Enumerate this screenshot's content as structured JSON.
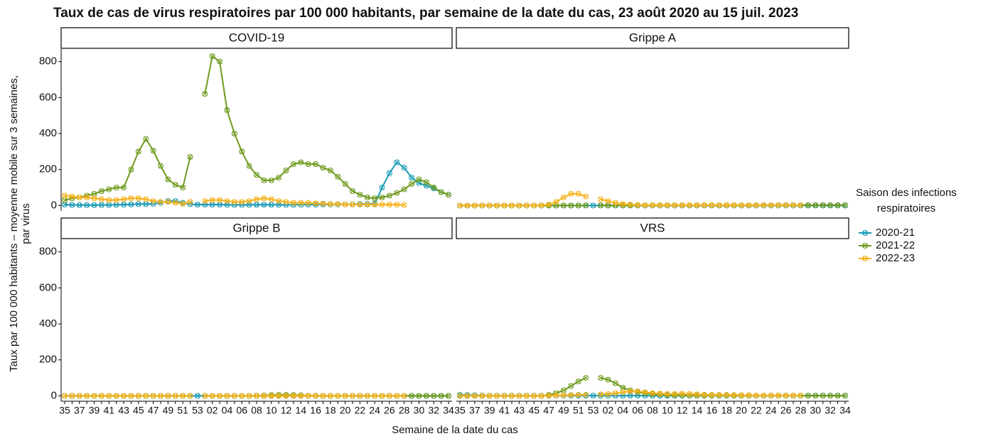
{
  "chart_data": {
    "type": "line",
    "title": "Taux de cas de virus respiratoires par 100 000 habitants, par semaine de la date du cas, 23 août 2020 au 15 juil. 2023",
    "xlabel": "Semaine de la date du cas",
    "ylabel": [
      "Taux par 100 000 habitants – moyenne mobile sur 3 semaines,",
      "par virus"
    ],
    "legend_title": [
      "Saison des infections",
      "respiratoires"
    ],
    "categories": [
      "35",
      null,
      "37",
      null,
      "39",
      null,
      "41",
      null,
      "43",
      null,
      "45",
      null,
      "47",
      null,
      "49",
      null,
      "51",
      null,
      "53",
      null,
      "02",
      null,
      "04",
      null,
      "06",
      null,
      "08",
      null,
      "10",
      null,
      "12",
      null,
      "14",
      null,
      "16",
      null,
      "18",
      null,
      "20",
      null,
      "22",
      null,
      "24",
      null,
      "26",
      null,
      "28",
      null,
      "30",
      null,
      "32",
      null,
      "34"
    ],
    "ylim": [
      -30,
      870
    ],
    "yticks": [
      0,
      200,
      400,
      600,
      800
    ],
    "series": [
      {
        "name": "2020-21",
        "color": "#1a9bb5"
      },
      {
        "name": "2021-22",
        "color": "#6f9a1c"
      },
      {
        "name": "2022-23",
        "color": "#f5b21b"
      }
    ],
    "facets": [
      {
        "title": "COVID-19",
        "values": [
          [
            5,
            3,
            2,
            2,
            2,
            3,
            3,
            4,
            5,
            6,
            8,
            8,
            10,
            15,
            25,
            25,
            15,
            8,
            5,
            5,
            5,
            5,
            4,
            4,
            4,
            4,
            4,
            4,
            4,
            4,
            4,
            4,
            5,
            5,
            5,
            6,
            6,
            6,
            6,
            6,
            8,
            8,
            10,
            100,
            180,
            240,
            210,
            155,
            125,
            110,
            95,
            75,
            60
          ],
          [
            30,
            40,
            45,
            55,
            65,
            80,
            90,
            100,
            100,
            200,
            300,
            370,
            305,
            220,
            145,
            115,
            100,
            270,
            null,
            620,
            830,
            800,
            530,
            400,
            300,
            220,
            170,
            140,
            140,
            155,
            195,
            230,
            240,
            230,
            230,
            210,
            195,
            160,
            120,
            80,
            60,
            45,
            40,
            45,
            55,
            70,
            90,
            120,
            145,
            130,
            100,
            75,
            60
          ],
          [
            55,
            50,
            45,
            45,
            40,
            35,
            30,
            30,
            35,
            40,
            40,
            35,
            25,
            20,
            20,
            15,
            10,
            20,
            null,
            25,
            30,
            30,
            25,
            20,
            20,
            25,
            35,
            40,
            35,
            25,
            20,
            15,
            15,
            15,
            12,
            10,
            8,
            8,
            6,
            5,
            5,
            5,
            5,
            5,
            5,
            5,
            3,
            null,
            null,
            null,
            null,
            null,
            null
          ]
        ]
      },
      {
        "title": "Grippe A",
        "values": [
          [
            0,
            0,
            0,
            0,
            0,
            0,
            0,
            0,
            0,
            0,
            0,
            0,
            0,
            0,
            0,
            0,
            0,
            0,
            0,
            0,
            0,
            0,
            0,
            0,
            0,
            0,
            0,
            0,
            0,
            0,
            0,
            0,
            0,
            0,
            0,
            0,
            0,
            0,
            0,
            0,
            0,
            0,
            0,
            0,
            0,
            0,
            0,
            0,
            0,
            0,
            0,
            0,
            0
          ],
          [
            0,
            0,
            0,
            0,
            0,
            0,
            0,
            0,
            0,
            0,
            0,
            0,
            0,
            0,
            0,
            0,
            0,
            1,
            null,
            1,
            1,
            1,
            1,
            1,
            1,
            1,
            1,
            1,
            1,
            1,
            1,
            1,
            1,
            1,
            1,
            1,
            1,
            1,
            1,
            1,
            1,
            2,
            2,
            2,
            2,
            2,
            2,
            2,
            2,
            2,
            2,
            2,
            2
          ],
          [
            0,
            0,
            0,
            0,
            0,
            0,
            0,
            0,
            0,
            0,
            0,
            1,
            5,
            20,
            45,
            65,
            65,
            50,
            null,
            35,
            25,
            15,
            8,
            5,
            3,
            2,
            2,
            2,
            2,
            2,
            2,
            2,
            2,
            2,
            2,
            2,
            2,
            2,
            2,
            2,
            2,
            2,
            2,
            2,
            2,
            2,
            2,
            null,
            null,
            null,
            null,
            null,
            null
          ]
        ]
      },
      {
        "title": "Grippe B",
        "values": [
          [
            0,
            0,
            0,
            0,
            0,
            0,
            0,
            0,
            0,
            0,
            0,
            0,
            0,
            0,
            0,
            0,
            0,
            0,
            0,
            0,
            0,
            0,
            0,
            0,
            0,
            0,
            0,
            0,
            0,
            0,
            0,
            0,
            0,
            0,
            0,
            0,
            0,
            0,
            0,
            0,
            0,
            0,
            0,
            0,
            0,
            0,
            0,
            0,
            0,
            0,
            0,
            0,
            0
          ],
          [
            0,
            0,
            0,
            0,
            0,
            0,
            0,
            0,
            0,
            0,
            0,
            0,
            0,
            0,
            0,
            0,
            0,
            0,
            null,
            0,
            0,
            0,
            0,
            0,
            0,
            0,
            1,
            2,
            4,
            5,
            5,
            4,
            3,
            1,
            1,
            0,
            0,
            0,
            0,
            0,
            0,
            0,
            0,
            0,
            0,
            0,
            0,
            0,
            0,
            0,
            0,
            0,
            0
          ],
          [
            0,
            0,
            0,
            0,
            0,
            0,
            0,
            0,
            0,
            0,
            0,
            0,
            0,
            0,
            0,
            0,
            0,
            0,
            null,
            0,
            0,
            0,
            0,
            0,
            0,
            0,
            0,
            0,
            0,
            0,
            0,
            0,
            0,
            0,
            0,
            0,
            0,
            0,
            0,
            0,
            0,
            0,
            0,
            0,
            0,
            0,
            0,
            null,
            null,
            null,
            null,
            null,
            null
          ]
        ]
      },
      {
        "title": "VRS",
        "values": [
          [
            5,
            4,
            3,
            2,
            1,
            1,
            1,
            1,
            1,
            1,
            1,
            1,
            1,
            1,
            1,
            1,
            1,
            1,
            1,
            1,
            1,
            1,
            1,
            1,
            1,
            1,
            1,
            1,
            1,
            1,
            1,
            1,
            1,
            1,
            1,
            1,
            1,
            1,
            1,
            1,
            1,
            1,
            1,
            1,
            1,
            1,
            1,
            1,
            1,
            1,
            1,
            1,
            1
          ],
          [
            0,
            0,
            0,
            0,
            0,
            0,
            0,
            0,
            0,
            0,
            0,
            0,
            5,
            15,
            30,
            55,
            80,
            100,
            null,
            100,
            90,
            70,
            45,
            30,
            20,
            15,
            10,
            8,
            5,
            4,
            3,
            2,
            2,
            2,
            2,
            2,
            2,
            1,
            1,
            1,
            1,
            1,
            1,
            1,
            1,
            1,
            1,
            1,
            1,
            1,
            1,
            1,
            1
          ],
          [
            0,
            0,
            0,
            0,
            0,
            0,
            0,
            0,
            0,
            0,
            0,
            0,
            1,
            2,
            3,
            4,
            5,
            6,
            null,
            8,
            10,
            15,
            20,
            25,
            25,
            20,
            15,
            12,
            10,
            10,
            12,
            10,
            8,
            6,
            5,
            5,
            5,
            4,
            3,
            3,
            2,
            2,
            2,
            2,
            2,
            2,
            2,
            null,
            null,
            null,
            null,
            null,
            null
          ]
        ]
      }
    ]
  }
}
